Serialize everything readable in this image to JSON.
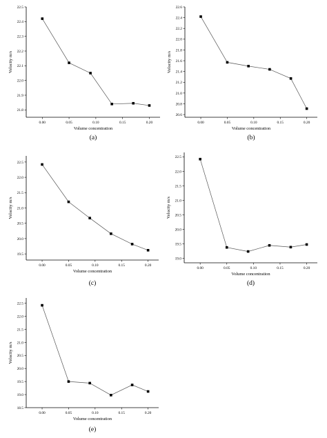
{
  "chart_data": [
    {
      "type": "line",
      "panel_label": "(a)",
      "xlabel": "Volume concentration",
      "ylabel": "Velocity m/s",
      "x": [
        0.0,
        0.05,
        0.09,
        0.13,
        0.17,
        0.2
      ],
      "series": [
        {
          "values": [
            22.42,
            22.12,
            22.05,
            21.84,
            21.845,
            21.83
          ]
        }
      ],
      "xlim": [
        -0.03,
        0.22
      ],
      "ylim": [
        21.75,
        22.5
      ],
      "xticks": [
        "0.00",
        "0.05",
        "0.10",
        "0.15",
        "0.20"
      ],
      "yticks": [
        "21.8",
        "21.9",
        "22.0",
        "22.1",
        "22.2",
        "22.3",
        "22.4",
        "22.5"
      ],
      "legend": false,
      "grid": false
    },
    {
      "type": "line",
      "panel_label": "(b)",
      "xlabel": "Volume concentration",
      "ylabel": "Velocity m/s",
      "x": [
        0.0,
        0.05,
        0.09,
        0.13,
        0.17,
        0.2
      ],
      "series": [
        {
          "values": [
            22.42,
            21.57,
            21.5,
            21.44,
            21.27,
            20.71
          ]
        }
      ],
      "xlim": [
        -0.03,
        0.22
      ],
      "ylim": [
        20.55,
        22.6
      ],
      "xticks": [
        "0.00",
        "0.05",
        "0.10",
        "0.15",
        "0.20"
      ],
      "yticks": [
        "20.6",
        "20.8",
        "21.0",
        "21.2",
        "21.4",
        "21.6",
        "21.8",
        "22.0",
        "22.2",
        "22.4",
        "22.6"
      ],
      "legend": false,
      "grid": false
    },
    {
      "type": "line",
      "panel_label": "(c)",
      "xlabel": "Volume concentration",
      "ylabel": "Velocity m/s",
      "x": [
        0.0,
        0.05,
        0.09,
        0.13,
        0.17,
        0.2
      ],
      "series": [
        {
          "values": [
            22.42,
            21.2,
            20.67,
            20.16,
            19.82,
            19.62
          ]
        }
      ],
      "xlim": [
        -0.03,
        0.22
      ],
      "ylim": [
        19.3,
        22.7
      ],
      "xticks": [
        "0.00",
        "0.05",
        "0.10",
        "0.15",
        "0.20"
      ],
      "yticks": [
        "19.5",
        "20.0",
        "20.5",
        "21.0",
        "21.5",
        "22.0",
        "22.5"
      ],
      "legend": false,
      "grid": false
    },
    {
      "type": "line",
      "panel_label": "(d)",
      "xlabel": "Volume concentration",
      "ylabel": "Velocity m/s",
      "x": [
        0.0,
        0.05,
        0.09,
        0.13,
        0.17,
        0.2
      ],
      "series": [
        {
          "values": [
            22.42,
            19.38,
            19.24,
            19.45,
            19.39,
            19.48
          ]
        }
      ],
      "xlim": [
        -0.03,
        0.22
      ],
      "ylim": [
        18.85,
        22.65
      ],
      "xticks": [
        "0.00",
        "0.05",
        "0.10",
        "0.15",
        "0.20"
      ],
      "yticks": [
        "19.0",
        "19.5",
        "20.0",
        "20.5",
        "21.0",
        "21.5",
        "22.0",
        "22.5"
      ],
      "legend": false,
      "grid": false
    },
    {
      "type": "line",
      "panel_label": "(e)",
      "xlabel": "Volume concentration",
      "ylabel": "Velocity m/s",
      "x": [
        0.0,
        0.05,
        0.09,
        0.13,
        0.17,
        0.2
      ],
      "series": [
        {
          "values": [
            22.42,
            19.5,
            19.44,
            18.98,
            19.37,
            19.12
          ]
        }
      ],
      "xlim": [
        -0.03,
        0.22
      ],
      "ylim": [
        18.5,
        22.7
      ],
      "xticks": [
        "0.00",
        "0.05",
        "0.10",
        "0.15",
        "0.20"
      ],
      "yticks": [
        "18.5",
        "19.0",
        "19.5",
        "20.0",
        "20.5",
        "21.0",
        "21.5",
        "22.0",
        "22.5"
      ],
      "legend": false,
      "grid": false
    }
  ]
}
